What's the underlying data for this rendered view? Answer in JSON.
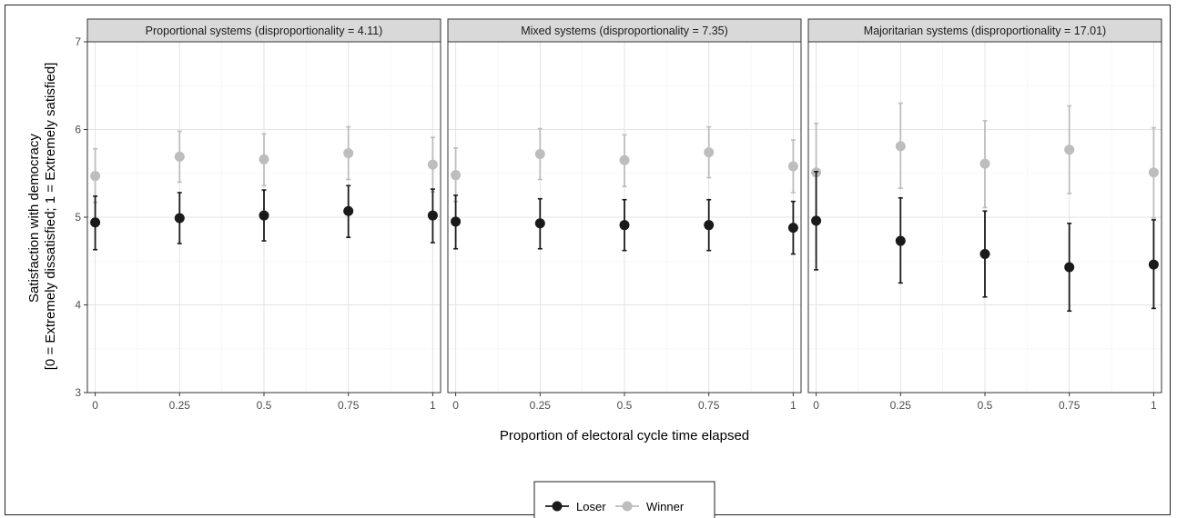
{
  "chart_data": {
    "type": "scatter",
    "subtype": "point-with-error-bars, faceted",
    "xlabel": "Proportion of electoral cycle time elapsed",
    "ylabel_line1": "Satisfaction with democracy",
    "ylabel_line2": "[0 = Extremely dissatisfied; 1 = Extremely satisfied]",
    "ylim": [
      3,
      7
    ],
    "yticks": [
      "3",
      "4",
      "5",
      "6",
      "7"
    ],
    "xticks": [
      "0",
      "0.25",
      "0.5",
      "0.75",
      "1"
    ],
    "xtick_values": [
      0,
      0.25,
      0.5,
      0.75,
      1
    ],
    "grid": true,
    "legend_position": "bottom",
    "legend": [
      {
        "name": "Loser",
        "color": "#1a1a1a"
      },
      {
        "name": "Winner",
        "color": "#bdbdbd"
      }
    ],
    "facets": [
      {
        "title": "Proportional systems (disproportionality = 4.11)",
        "series": [
          {
            "name": "Loser",
            "values": [
              4.94,
              4.99,
              5.02,
              5.07,
              5.02
            ],
            "lower": [
              4.63,
              4.7,
              4.73,
              4.77,
              4.71
            ],
            "upper": [
              5.24,
              5.28,
              5.31,
              5.36,
              5.32
            ]
          },
          {
            "name": "Winner",
            "values": [
              5.47,
              5.69,
              5.66,
              5.73,
              5.6
            ],
            "lower": [
              5.17,
              5.4,
              5.36,
              5.43,
              5.29
            ],
            "upper": [
              5.78,
              5.98,
              5.95,
              6.03,
              5.91
            ]
          }
        ]
      },
      {
        "title": "Mixed systems (disproportionality = 7.35)",
        "series": [
          {
            "name": "Loser",
            "values": [
              4.95,
              4.93,
              4.91,
              4.91,
              4.88
            ],
            "lower": [
              4.64,
              4.64,
              4.62,
              4.62,
              4.58
            ],
            "upper": [
              5.25,
              5.21,
              5.2,
              5.2,
              5.18
            ]
          },
          {
            "name": "Winner",
            "values": [
              5.48,
              5.72,
              5.65,
              5.74,
              5.58
            ],
            "lower": [
              5.18,
              5.43,
              5.35,
              5.45,
              5.28
            ],
            "upper": [
              5.79,
              6.01,
              5.94,
              6.03,
              5.88
            ]
          }
        ]
      },
      {
        "title": "Majoritarian systems (disproportionality = 17.01)",
        "series": [
          {
            "name": "Loser",
            "values": [
              4.96,
              4.73,
              4.58,
              4.43,
              4.46
            ],
            "lower": [
              4.4,
              4.25,
              4.09,
              3.93,
              3.96
            ],
            "upper": [
              5.52,
              5.22,
              5.07,
              4.93,
              4.97
            ]
          },
          {
            "name": "Winner",
            "values": [
              5.51,
              5.81,
              5.61,
              5.77,
              5.51
            ],
            "lower": [
              4.96,
              5.33,
              5.11,
              5.27,
              4.99
            ],
            "upper": [
              6.07,
              6.3,
              6.1,
              6.27,
              6.02
            ]
          }
        ]
      }
    ]
  }
}
